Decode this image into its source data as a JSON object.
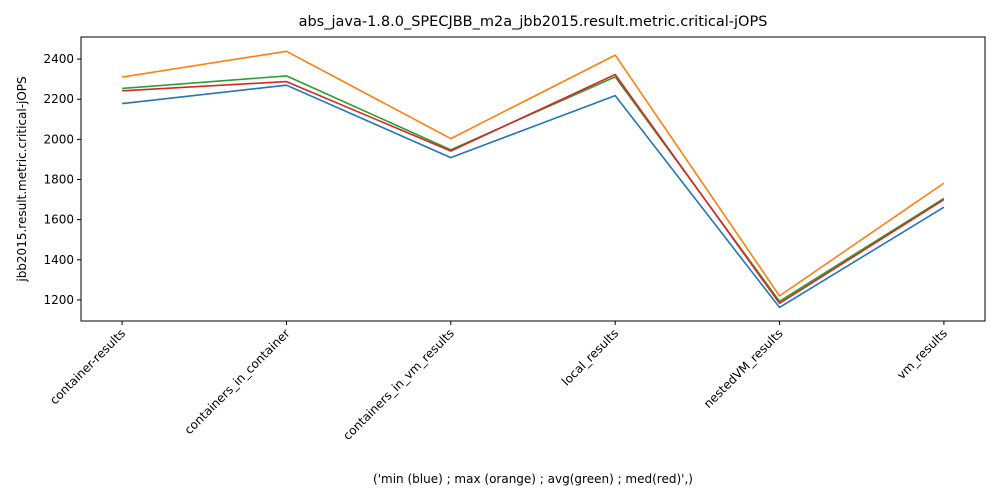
{
  "chart_data": {
    "type": "line",
    "title": "abs_java-1.8.0_SPECJBB_m2a_jbb2015.result.metric.critical-jOPS",
    "xlabel": "('min (blue) ; max (orange) ; avg(green) ; med(red)',)",
    "ylabel": "jbb2015.result.metric.critical-jOPS",
    "categories": [
      "container-results",
      "containers_in_container",
      "containers_in_vm_results",
      "local_results",
      "nestedVM_results",
      "vm_results"
    ],
    "ylim": [
      1095,
      2510
    ],
    "yticks": [
      1200,
      1400,
      1600,
      1800,
      2000,
      2200,
      2400
    ],
    "grid": false,
    "series": [
      {
        "color": "#1f77b4",
        "values": [
          2178,
          2270,
          1909,
          2218,
          1163,
          1662
        ]
      },
      {
        "color": "#ff7f0e",
        "values": [
          2310,
          2439,
          2004,
          2420,
          1220,
          1782
        ]
      },
      {
        "color": "#2ca02c",
        "values": [
          2254,
          2316,
          1948,
          2311,
          1193,
          1706
        ]
      },
      {
        "color": "#d62728",
        "values": [
          2242,
          2288,
          1942,
          2323,
          1183,
          1700
        ]
      }
    ]
  }
}
